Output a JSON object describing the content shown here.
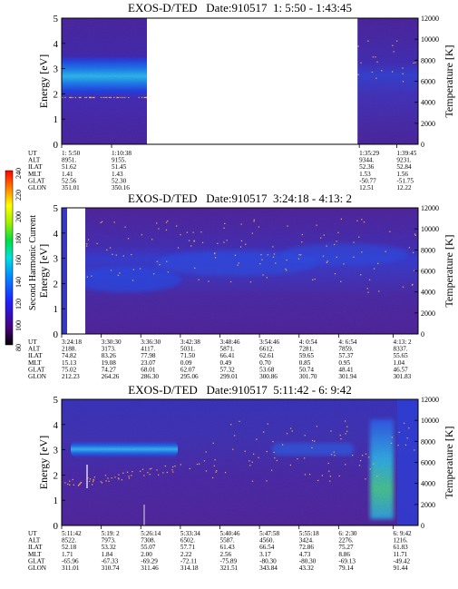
{
  "colorbar": {
    "label": "Second Harmonic Current",
    "ticks": [
      "80",
      "100",
      "120",
      "140",
      "160",
      "180",
      "200",
      "220",
      "240"
    ]
  },
  "chart_data": [
    {
      "type": "heatmap",
      "title": "EXOS-D/TED   Date:910517  1: 5:50 - 1:43:45",
      "ylabel": "Energy [eV]",
      "y2label": "Temperature [K]",
      "ylim": [
        0,
        5
      ],
      "y2lim": [
        0,
        12000
      ],
      "yticks": [
        "0",
        "1",
        "2",
        "3",
        "4",
        "5"
      ],
      "y2ticks": [
        "0",
        "2000",
        "4000",
        "6000",
        "8000",
        "10000",
        "12000"
      ],
      "data_gap": [
        0.24,
        0.83
      ],
      "row_labels": [
        "UT",
        "ALT",
        "ILAT",
        "MLT",
        "GLAT",
        "GLON"
      ],
      "columns": [
        {
          "pos": 0.0,
          "values": [
            "1: 5:50",
            "8951.",
            "51.62",
            "1.41",
            "52.56",
            "351.01"
          ]
        },
        {
          "pos": 0.14,
          "values": [
            "1:10:38",
            "9155.",
            "51.45",
            "1.43",
            "52.30",
            "350.16"
          ]
        },
        {
          "pos": 0.835,
          "values": [
            "1:35:29",
            "9344.",
            "52.36",
            "1.53",
            "-50.77",
            "12.51"
          ]
        },
        {
          "pos": 0.94,
          "values": [
            "1:39:45",
            "9231.",
            "52.84",
            "1.56",
            "-51.75",
            "12.22"
          ]
        }
      ]
    },
    {
      "type": "heatmap",
      "title": "EXOS-D/TED   Date:910517  3:24:18 - 4:13: 2",
      "ylabel": "Energy [eV]",
      "y2label": "Temperature [K]",
      "ylim": [
        0,
        5
      ],
      "y2lim": [
        0,
        12000
      ],
      "yticks": [
        "0",
        "1",
        "2",
        "3",
        "4",
        "5"
      ],
      "y2ticks": [
        "0",
        "2000",
        "4000",
        "6000",
        "8000",
        "10000",
        "12000"
      ],
      "data_gap": [
        0.015,
        0.055
      ],
      "row_labels": [
        "UT",
        "ALT",
        "ILAT",
        "MLT",
        "GLAT",
        "GLON"
      ],
      "columns": [
        {
          "pos": 0.0,
          "values": [
            "3:24:18",
            "2188.",
            "74.82",
            "15.13",
            "75.02",
            "212.23"
          ]
        },
        {
          "pos": 0.111,
          "values": [
            "3:30:30",
            "3173.",
            "83.26",
            "19.08",
            "74.27",
            "264.26"
          ]
        },
        {
          "pos": 0.222,
          "values": [
            "3:36:30",
            "4117.",
            "77.98",
            "23.07",
            "68.01",
            "286.30"
          ]
        },
        {
          "pos": 0.333,
          "values": [
            "3:42:38",
            "5031.",
            "71.50",
            "0.09",
            "62.07",
            "295.06"
          ]
        },
        {
          "pos": 0.444,
          "values": [
            "3:48:46",
            "5871.",
            "66.41",
            "0.49",
            "57.32",
            "299.01"
          ]
        },
        {
          "pos": 0.555,
          "values": [
            "3:54:46",
            "6612.",
            "62.61",
            "0.70",
            "53.68",
            "300.86"
          ]
        },
        {
          "pos": 0.666,
          "values": [
            "4: 0:54",
            "7281.",
            "59.65",
            "0.85",
            "50.74",
            "301.70"
          ]
        },
        {
          "pos": 0.777,
          "values": [
            "4: 6:54",
            "7859.",
            "57.37",
            "0.95",
            "48.41",
            "301.94"
          ]
        },
        {
          "pos": 0.93,
          "values": [
            "4:13: 2",
            "8337.",
            "55.65",
            "1.04",
            "46.57",
            "301.83"
          ]
        }
      ]
    },
    {
      "type": "heatmap",
      "title": "EXOS-D/TED   Date:910517  5:11:42 - 6: 9:42",
      "ylabel": "Energy [eV]",
      "y2label": "Temperature [K]",
      "ylim": [
        0,
        5
      ],
      "y2lim": [
        0,
        12000
      ],
      "yticks": [
        "0",
        "1",
        "2",
        "3",
        "4",
        "5"
      ],
      "y2ticks": [
        "0",
        "2000",
        "4000",
        "6000",
        "8000",
        "10000",
        "12000"
      ],
      "data_gap": null,
      "row_labels": [
        "UT",
        "ALT",
        "ILAT",
        "MLT",
        "GLAT",
        "GLON"
      ],
      "columns": [
        {
          "pos": 0.0,
          "values": [
            "5:11:42",
            "8522.",
            "52.18",
            "1.71",
            "-65.96",
            "311.01"
          ]
        },
        {
          "pos": 0.111,
          "values": [
            "5:19: 2",
            "7973.",
            "53.32",
            "1.84",
            "-67.33",
            "310.74"
          ]
        },
        {
          "pos": 0.222,
          "values": [
            "5:26:14",
            "7308.",
            "55.07",
            "2.00",
            "-69.29",
            "311.46"
          ]
        },
        {
          "pos": 0.333,
          "values": [
            "5:33:34",
            "6502.",
            "57.71",
            "2.22",
            "-72.11",
            "314.18"
          ]
        },
        {
          "pos": 0.444,
          "values": [
            "5:40:46",
            "5587.",
            "61.43",
            "2.56",
            "-75.89",
            "321.51"
          ]
        },
        {
          "pos": 0.555,
          "values": [
            "5:47:58",
            "4560.",
            "66.54",
            "3.17",
            "-80.30",
            "343.84"
          ]
        },
        {
          "pos": 0.666,
          "values": [
            "5:55:18",
            "3424.",
            "72.86",
            "4.73",
            "-80.30",
            "43.32"
          ]
        },
        {
          "pos": 0.777,
          "values": [
            "6: 2:30",
            "2276.",
            "75.27",
            "8.86",
            "-69.13",
            "79.14"
          ]
        },
        {
          "pos": 0.93,
          "values": [
            "6: 9:42",
            "1216.",
            "61.83",
            "11.71",
            "-49.42",
            "91.44"
          ]
        }
      ]
    }
  ]
}
